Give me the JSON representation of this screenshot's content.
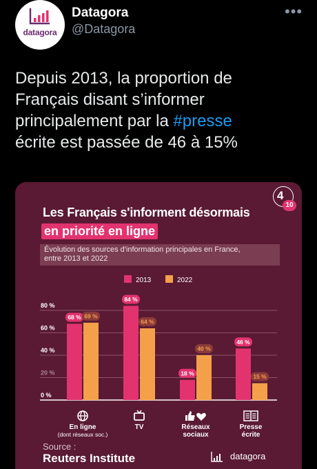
{
  "tweet": {
    "author_name": "Datagora",
    "author_handle": "@Datagora",
    "avatar_text": "datagora",
    "more_label": "•••",
    "text_lines": [
      "Depuis 2013, la proportion de",
      "Français disant s’informer",
      "principalement par la ",
      "écrite est passée de 46 à 15%"
    ],
    "hashtag": "#presse"
  },
  "card": {
    "badge_main": "4",
    "badge_sub": "10",
    "title": "Les Français s'informent désormais",
    "title_highlight": "en priorité en ligne",
    "subtitle_line1": "Évolution des sources d'information principales en France,",
    "subtitle_line2": "entre 2013 et 2022",
    "source_label": "Source :",
    "source_value": "Reuters Institute",
    "footer_logo_text": "datagora"
  },
  "chart_data": {
    "type": "bar",
    "categories": [
      "En ligne",
      "TV",
      "Réseaux sociaux",
      "Presse écrite"
    ],
    "category_sublabels": [
      "(dont réseaux soc.)",
      "",
      "",
      ""
    ],
    "category_labels_display": [
      [
        "En ligne"
      ],
      [
        "TV"
      ],
      [
        "Réseaux",
        "sociaux"
      ],
      [
        "Presse",
        "écrite"
      ]
    ],
    "category_icons": [
      "globe-icon",
      "tv-icon",
      "like-heart-icon",
      "newspaper-icon"
    ],
    "series": [
      {
        "name": "2013",
        "values": [
          68,
          84,
          18,
          46
        ],
        "labels": [
          "68 %",
          "84 %",
          "18 %",
          "46 %"
        ],
        "color": "#e2336f"
      },
      {
        "name": "2022",
        "values": [
          69,
          64,
          40,
          15
        ],
        "labels": [
          "69 %",
          "64 %",
          "40 %",
          "15 %"
        ],
        "color": "#f4a04a"
      }
    ],
    "ylim": [
      0,
      80
    ],
    "y_ticks": [
      0,
      20,
      40,
      60,
      80
    ],
    "y_tick_labels": [
      "0 %",
      "20 %",
      "40 %",
      "60 %",
      "80 %"
    ],
    "grid": true,
    "legend_position": "top"
  },
  "colors": {
    "card_bg": "#5a1a33",
    "accent_pink": "#e2336f",
    "accent_orange": "#f4a04a",
    "hashtag_blue": "#1d9bf0"
  }
}
